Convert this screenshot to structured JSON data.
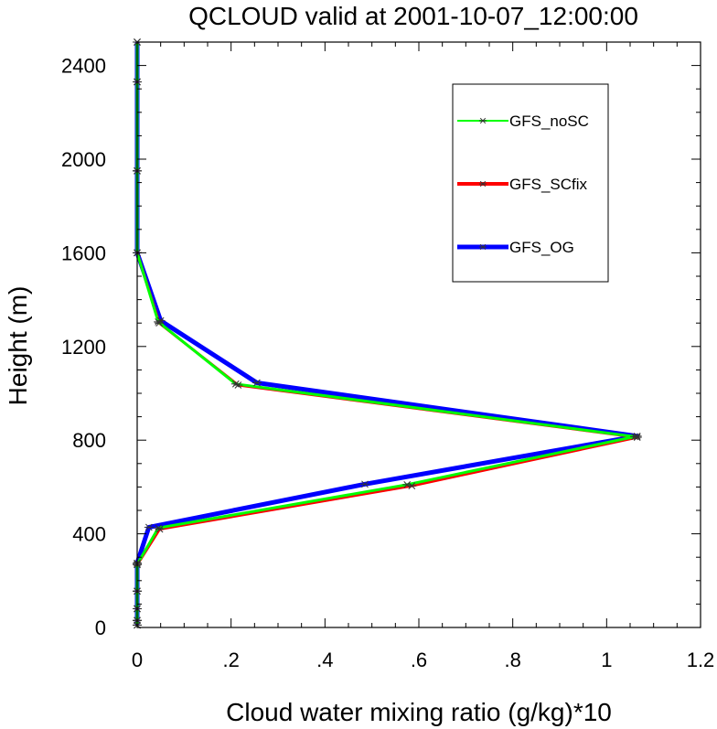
{
  "chart_data": {
    "type": "line",
    "title": "QCLOUD valid at 2001-10-07_12:00:00",
    "xlabel": "Cloud water mixing ratio (g/kg)*10",
    "ylabel": "Height (m)",
    "xlim": [
      0,
      1.2
    ],
    "ylim": [
      0,
      2500
    ],
    "x_ticks": [
      0,
      0.2,
      0.4,
      0.6,
      0.8,
      1.0,
      1.2
    ],
    "x_tick_labels": [
      "0",
      ".2",
      ".4",
      ".6",
      ".8",
      "1",
      "1.2"
    ],
    "y_ticks": [
      0,
      400,
      800,
      1200,
      1600,
      2000,
      2400
    ],
    "y_tick_labels": [
      "0",
      "400",
      "800",
      "1200",
      "1600",
      "2000",
      "2400"
    ],
    "grid": false,
    "legend_position": "top-right",
    "series": [
      {
        "name": "GFS_noSC",
        "color": "#00ff00",
        "marker": "asterisk",
        "points": [
          {
            "x": 0.0,
            "y": 2500
          },
          {
            "x": 0.0,
            "y": 2330
          },
          {
            "x": 0.0,
            "y": 1950
          },
          {
            "x": 0.0,
            "y": 1600
          },
          {
            "x": 0.045,
            "y": 1305
          },
          {
            "x": 0.21,
            "y": 1040
          },
          {
            "x": 1.06,
            "y": 815
          },
          {
            "x": 0.575,
            "y": 610
          },
          {
            "x": 0.045,
            "y": 425
          },
          {
            "x": 0.0,
            "y": 270
          },
          {
            "x": 0.0,
            "y": 155
          },
          {
            "x": 0.0,
            "y": 80
          },
          {
            "x": 0.0,
            "y": 30
          },
          {
            "x": 0.0,
            "y": 10
          }
        ]
      },
      {
        "name": "GFS_SCfix",
        "color": "#ff0000",
        "marker": "asterisk",
        "points": [
          {
            "x": 0.0,
            "y": 2500
          },
          {
            "x": 0.0,
            "y": 2330
          },
          {
            "x": 0.0,
            "y": 1950
          },
          {
            "x": 0.0,
            "y": 1600
          },
          {
            "x": 0.047,
            "y": 1300
          },
          {
            "x": 0.215,
            "y": 1035
          },
          {
            "x": 1.065,
            "y": 812
          },
          {
            "x": 0.585,
            "y": 605
          },
          {
            "x": 0.048,
            "y": 420
          },
          {
            "x": 0.0,
            "y": 268
          },
          {
            "x": 0.0,
            "y": 155
          },
          {
            "x": 0.0,
            "y": 80
          },
          {
            "x": 0.0,
            "y": 30
          },
          {
            "x": 0.0,
            "y": 10
          }
        ]
      },
      {
        "name": "GFS_OG",
        "color": "#0000ff",
        "marker": "asterisk",
        "points": [
          {
            "x": 0.0,
            "y": 2500
          },
          {
            "x": 0.0,
            "y": 2330
          },
          {
            "x": 0.0,
            "y": 1950
          },
          {
            "x": 0.0,
            "y": 1600
          },
          {
            "x": 0.05,
            "y": 1310
          },
          {
            "x": 0.255,
            "y": 1045
          },
          {
            "x": 1.065,
            "y": 817
          },
          {
            "x": 0.485,
            "y": 612
          },
          {
            "x": 0.025,
            "y": 428
          },
          {
            "x": 0.0,
            "y": 275
          },
          {
            "x": 0.0,
            "y": 155
          },
          {
            "x": 0.0,
            "y": 80
          },
          {
            "x": 0.0,
            "y": 30
          },
          {
            "x": 0.0,
            "y": 10
          }
        ]
      }
    ]
  }
}
